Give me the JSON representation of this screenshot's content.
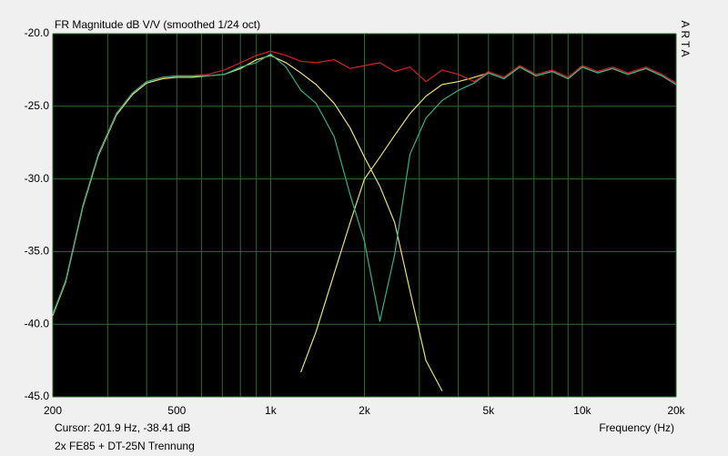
{
  "chart_data": {
    "type": "line",
    "title": "FR Magnitude dB V/V (smoothed 1/24 oct)",
    "watermark": "ARTA",
    "xlabel": "Frequency (Hz)",
    "cursor_text": "Cursor: 201.9 Hz, -38.41 dB",
    "note": "2x FE85 + DT-25N Trennung",
    "xscale": "log",
    "grid": true,
    "grid_color": "#2f6b2f",
    "background": "#000000",
    "xlim": [
      200,
      20000
    ],
    "ylim": [
      -45,
      -20
    ],
    "xticks": [
      200,
      500,
      {
        "value": 1000,
        "label": "1k"
      },
      {
        "value": 2000,
        "label": "2k"
      },
      {
        "value": 5000,
        "label": "5k"
      },
      {
        "value": 10000,
        "label": "10k"
      },
      {
        "value": 20000,
        "label": "20k"
      }
    ],
    "x_minor_ticks": [
      300,
      400,
      600,
      700,
      800,
      900,
      3000,
      4000,
      6000,
      7000,
      8000,
      9000
    ],
    "yticks": [
      {
        "value": -20,
        "label": "-20.0"
      },
      {
        "value": -25,
        "label": "-25.0"
      },
      {
        "value": -30,
        "label": "-30.0"
      },
      {
        "value": -35,
        "label": "-35.0"
      },
      {
        "value": -40,
        "label": "-40.0"
      },
      {
        "value": -45,
        "label": "-45.0"
      }
    ],
    "x": [
      200,
      220,
      250,
      280,
      320,
      360,
      400,
      450,
      500,
      560,
      630,
      710,
      800,
      900,
      1000,
      1120,
      1250,
      1400,
      1600,
      1800,
      2000,
      2240,
      2500,
      2800,
      3150,
      3550,
      4000,
      4500,
      5000,
      5600,
      6300,
      7100,
      8000,
      9000,
      10000,
      11200,
      12500,
      14000,
      16000,
      18000,
      20000
    ],
    "series": [
      {
        "color": "#e8e070",
        "values": [
          null,
          null,
          null,
          null,
          null,
          null,
          null,
          null,
          null,
          null,
          null,
          null,
          null,
          null,
          null,
          null,
          -43.3,
          -40.5,
          -36.5,
          -33.0,
          -30.0,
          -28.5,
          -27.0,
          -25.5,
          -24.3,
          -23.5,
          -23.3,
          -23.0,
          -22.7,
          -23.1,
          -22.3,
          -22.9,
          -22.6,
          -23.1,
          -22.3,
          -22.7,
          -22.4,
          -22.8,
          -22.4,
          -22.9,
          -23.5
        ]
      },
      {
        "color": "#e8e070",
        "values": [
          -39.4,
          -37.1,
          -31.9,
          -28.4,
          -25.6,
          -24.2,
          -23.4,
          -23.1,
          -23.0,
          -23.0,
          -22.9,
          -22.8,
          -22.4,
          -21.8,
          -21.5,
          -22.0,
          -22.7,
          -23.5,
          -24.8,
          -26.5,
          -28.5,
          -30.5,
          -33.0,
          -37.7,
          -42.5,
          -44.6,
          null,
          null,
          null,
          null,
          null,
          null,
          null,
          null,
          null,
          null,
          null,
          null,
          null,
          null,
          null
        ]
      },
      {
        "color": "#d42020",
        "values": [
          -39.3,
          -37.0,
          -31.8,
          -28.3,
          -25.5,
          -24.1,
          -23.3,
          -23.0,
          -22.9,
          -22.9,
          -22.8,
          -22.5,
          -22.0,
          -21.5,
          -21.2,
          -21.5,
          -21.9,
          -22.0,
          -21.8,
          -22.4,
          -22.2,
          -22.0,
          -22.6,
          -22.3,
          -23.3,
          -22.5,
          -22.8,
          -23.3,
          -22.6,
          -23.0,
          -22.2,
          -22.8,
          -22.5,
          -23.0,
          -22.2,
          -22.6,
          -22.3,
          -22.7,
          -22.3,
          -22.8,
          -23.4
        ]
      },
      {
        "color": "#2fb08a",
        "values": [
          -39.3,
          -37.0,
          -31.8,
          -28.3,
          -25.5,
          -24.1,
          -23.3,
          -23.0,
          -22.9,
          -22.9,
          -22.9,
          -22.8,
          -22.3,
          -22.0,
          -21.4,
          -22.3,
          -23.9,
          -24.8,
          -27.1,
          -31.1,
          -34.3,
          -39.8,
          -35.2,
          -28.3,
          -25.8,
          -24.6,
          -23.9,
          -23.4,
          -22.7,
          -23.1,
          -22.3,
          -22.9,
          -22.6,
          -23.1,
          -22.3,
          -22.7,
          -22.4,
          -22.8,
          -22.4,
          -22.9,
          -23.5
        ]
      }
    ]
  }
}
